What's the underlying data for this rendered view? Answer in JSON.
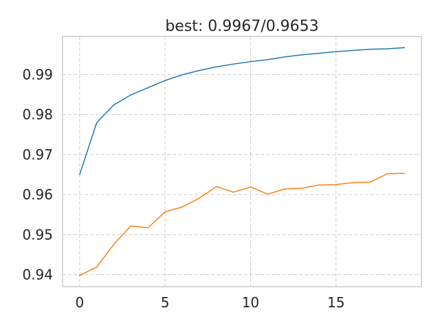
{
  "chart_data": {
    "type": "line",
    "title": "best: 0.9967/0.9653",
    "xlabel": "",
    "ylabel": "",
    "xlim": [
      -1,
      20
    ],
    "ylim": [
      0.937,
      0.9995
    ],
    "xticks": [
      0,
      5,
      10,
      15
    ],
    "xtick_labels": [
      "0",
      "5",
      "10",
      "15"
    ],
    "yticks": [
      0.94,
      0.95,
      0.96,
      0.97,
      0.98,
      0.99
    ],
    "ytick_labels": [
      "0.94",
      "0.95",
      "0.96",
      "0.97",
      "0.98",
      "0.99"
    ],
    "grid": true,
    "x": [
      0,
      1,
      2,
      3,
      4,
      5,
      6,
      7,
      8,
      9,
      10,
      11,
      12,
      13,
      14,
      15,
      16,
      17,
      18,
      19
    ],
    "series": [
      {
        "color": "#1f77b4",
        "values": [
          0.965,
          0.978,
          0.9824,
          0.9849,
          0.9867,
          0.9885,
          0.9899,
          0.991,
          0.9919,
          0.9926,
          0.9932,
          0.9937,
          0.9944,
          0.9949,
          0.9953,
          0.9957,
          0.996,
          0.9963,
          0.9964,
          0.9967
        ]
      },
      {
        "color": "#ff7f0e",
        "values": [
          0.9398,
          0.9419,
          0.9476,
          0.9522,
          0.9517,
          0.9557,
          0.9569,
          0.9591,
          0.962,
          0.9606,
          0.9619,
          0.9601,
          0.9614,
          0.9616,
          0.9624,
          0.9625,
          0.963,
          0.9631,
          0.9652,
          0.9653
        ]
      }
    ]
  }
}
